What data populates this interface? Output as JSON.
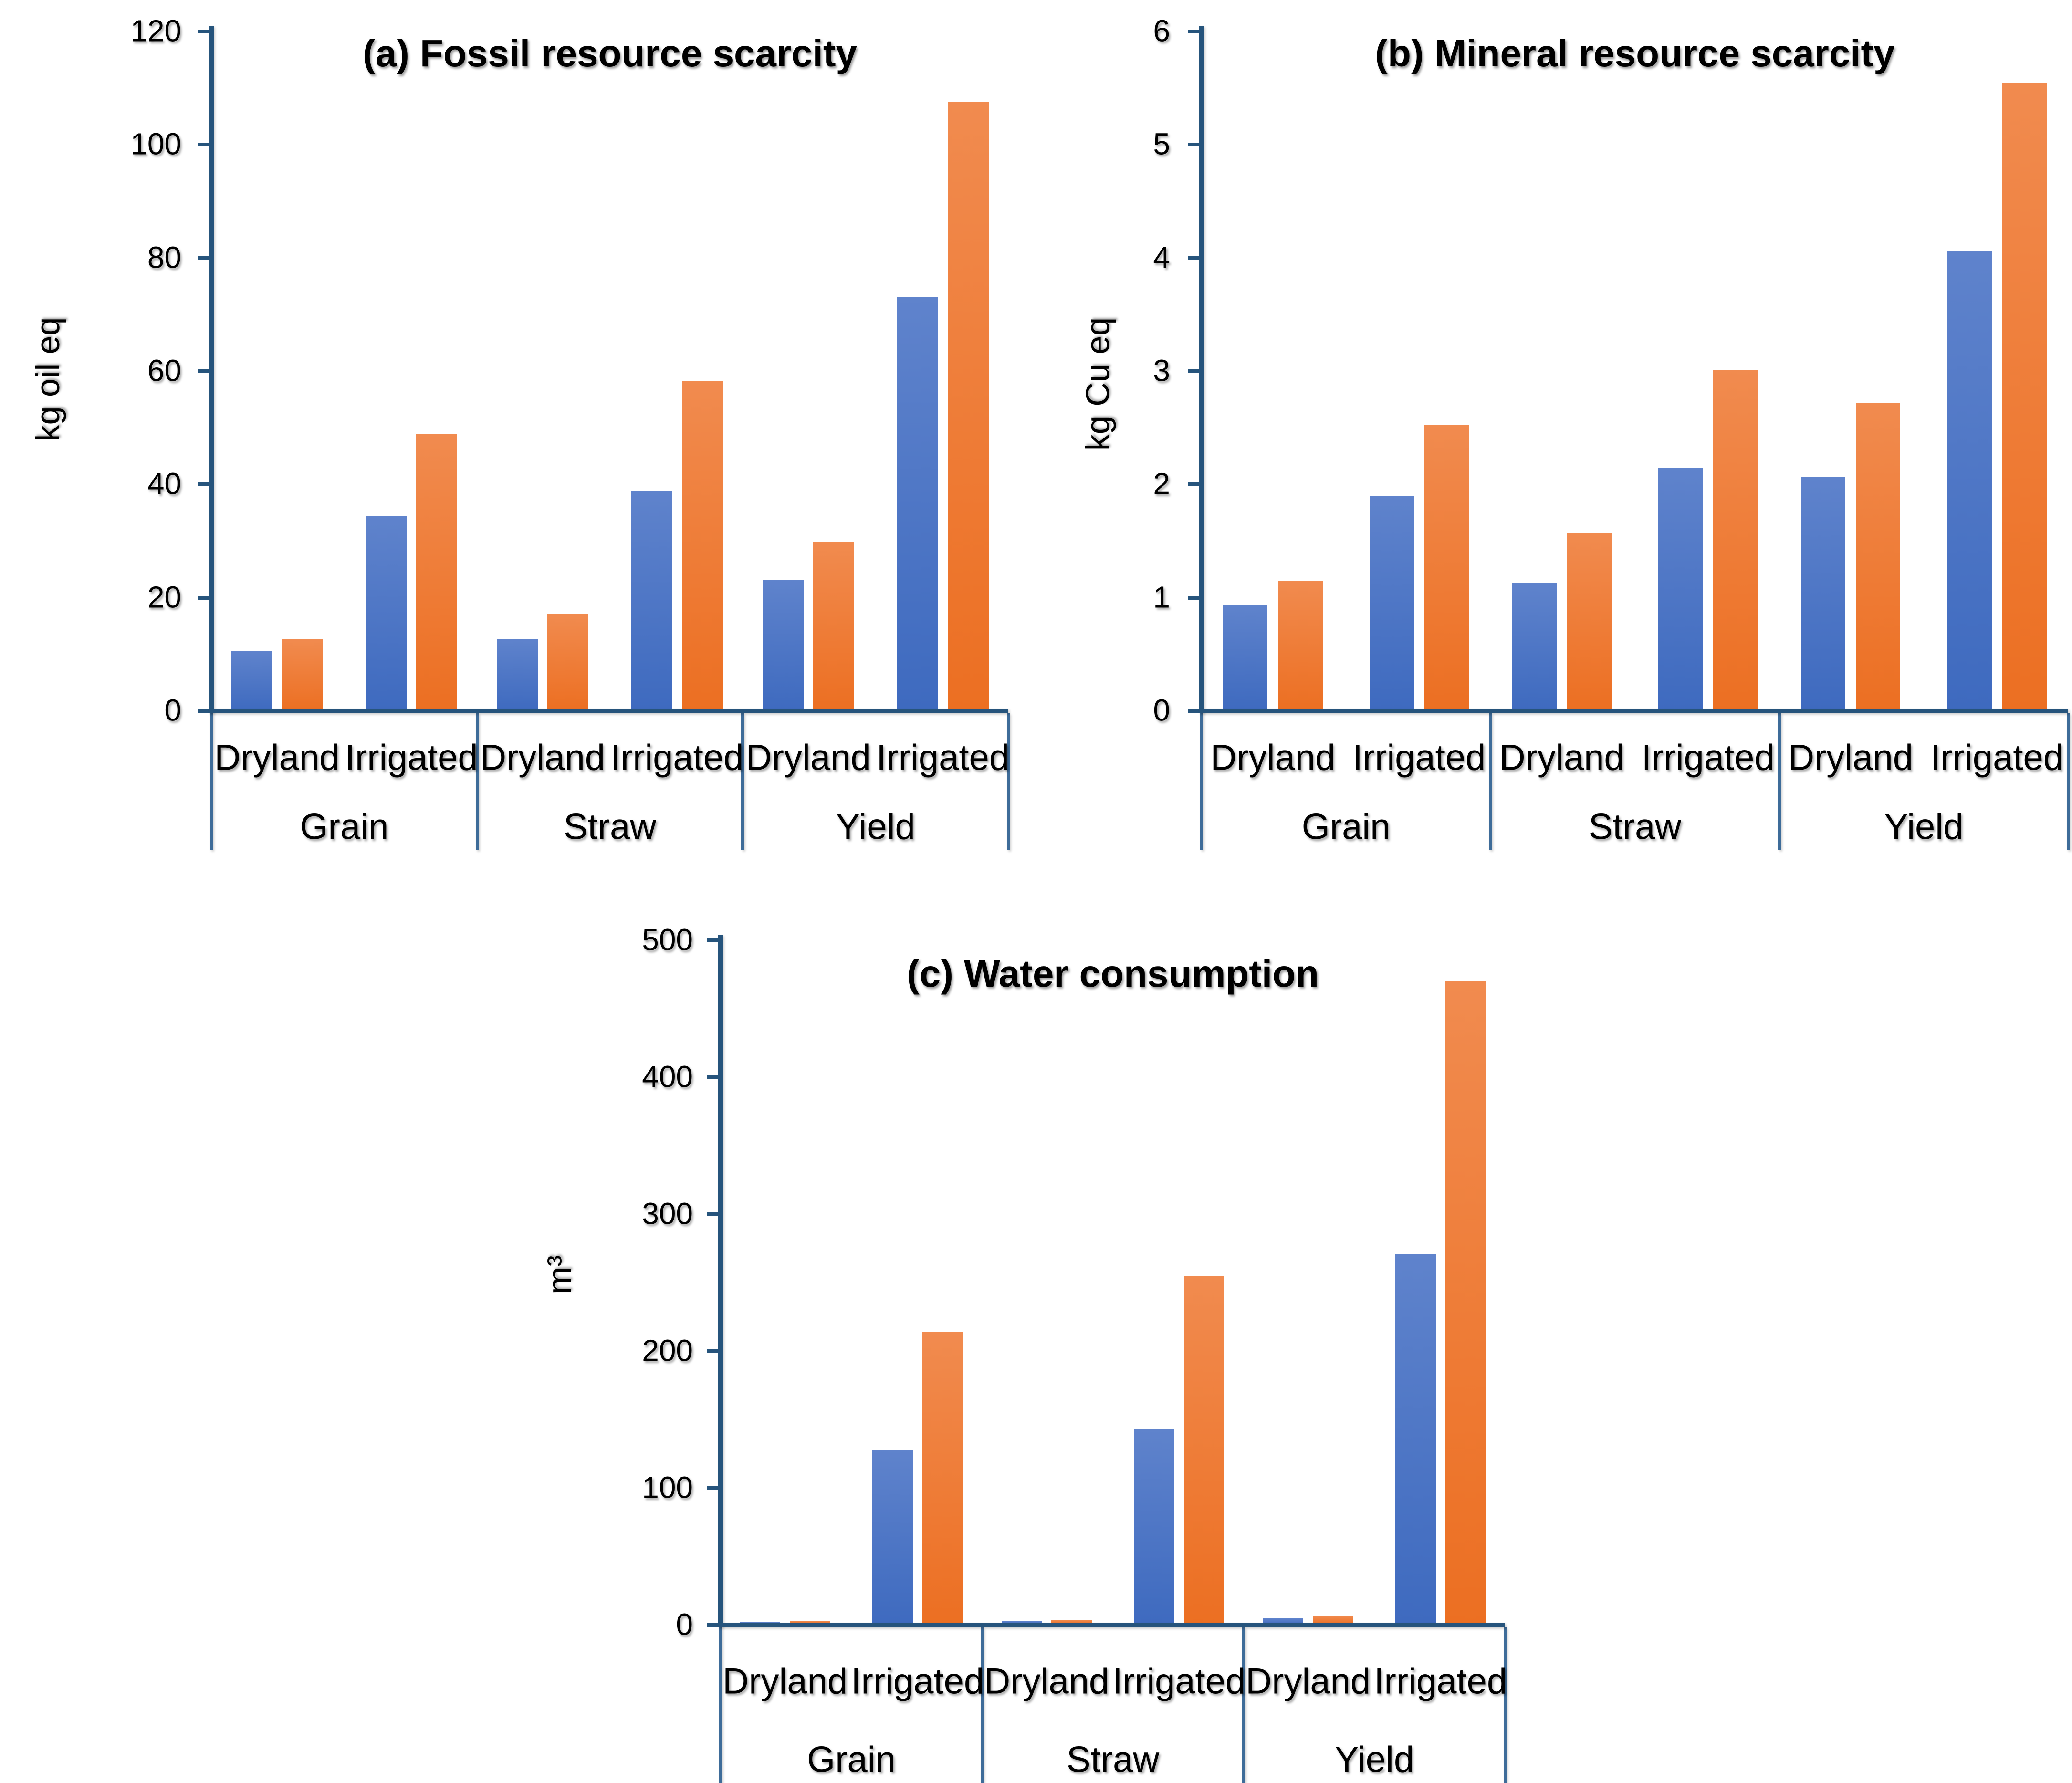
{
  "colors": {
    "bar_blue_top": "#5F83CC",
    "bar_blue_bottom": "#3E6ABF",
    "bar_orange_top": "#F18B4F",
    "bar_orange_bottom": "#EC6F22",
    "axis_line": "#26547C",
    "separator_line": "#3E6C99",
    "text": "#000000"
  },
  "value_order": [
    "Grain Dryland",
    "Grain Irrigated",
    "Straw Dryland",
    "Straw Irrigated",
    "Yield Dryland",
    "Yield Irrigated"
  ],
  "chart_data": [
    {
      "type": "bar",
      "panel": "a",
      "title": "(a) Fossil resource scarcity",
      "xlabel": "",
      "ylabel": "kg oil eq",
      "ylim": [
        0,
        120
      ],
      "ytick_step": 20,
      "ytick_labels": [
        "120",
        "100",
        "80",
        "60",
        "40",
        "20",
        "0"
      ],
      "categories": [
        "Grain",
        "Straw",
        "Yield"
      ],
      "subcategories": [
        "Dryland",
        "Irrigated"
      ],
      "grid": false,
      "legend_position": "none",
      "series": [
        {
          "name": "blue",
          "values": [
            10.5,
            34.5,
            12.7,
            38.8,
            23.2,
            73.1
          ]
        },
        {
          "name": "orange",
          "values": [
            12.6,
            49.0,
            17.2,
            58.3,
            29.8,
            107.5
          ]
        }
      ]
    },
    {
      "type": "bar",
      "panel": "b",
      "title": "(b) Mineral resource scarcity",
      "xlabel": "",
      "ylabel": "kg Cu eq",
      "ylim": [
        0,
        6
      ],
      "ytick_step": 1,
      "ytick_labels": [
        "6",
        "5",
        "4",
        "3",
        "2",
        "1",
        "0"
      ],
      "categories": [
        "Grain",
        "Straw",
        "Yield"
      ],
      "subcategories": [
        "Dryland",
        "Irrigated"
      ],
      "grid": false,
      "legend_position": "none",
      "series": [
        {
          "name": "blue",
          "values": [
            0.93,
            1.9,
            1.13,
            2.15,
            2.07,
            4.06
          ]
        },
        {
          "name": "orange",
          "values": [
            1.15,
            2.53,
            1.57,
            3.01,
            2.72,
            5.54
          ]
        }
      ]
    },
    {
      "type": "bar",
      "panel": "c",
      "title": "(c) Water consumption",
      "xlabel": "",
      "ylabel": "m³",
      "ylim": [
        0,
        500
      ],
      "ytick_step": 100,
      "ytick_labels": [
        "500",
        "400",
        "300",
        "200",
        "100",
        "0"
      ],
      "categories": [
        "Grain",
        "Straw",
        "Yield"
      ],
      "subcategories": [
        "Dryland",
        "Irrigated"
      ],
      "grid": false,
      "legend_position": "none",
      "series": [
        {
          "name": "blue",
          "values": [
            2,
            128,
            3,
            143,
            5,
            271
          ]
        },
        {
          "name": "orange",
          "values": [
            3,
            214,
            4,
            255,
            7,
            470
          ]
        }
      ]
    }
  ]
}
